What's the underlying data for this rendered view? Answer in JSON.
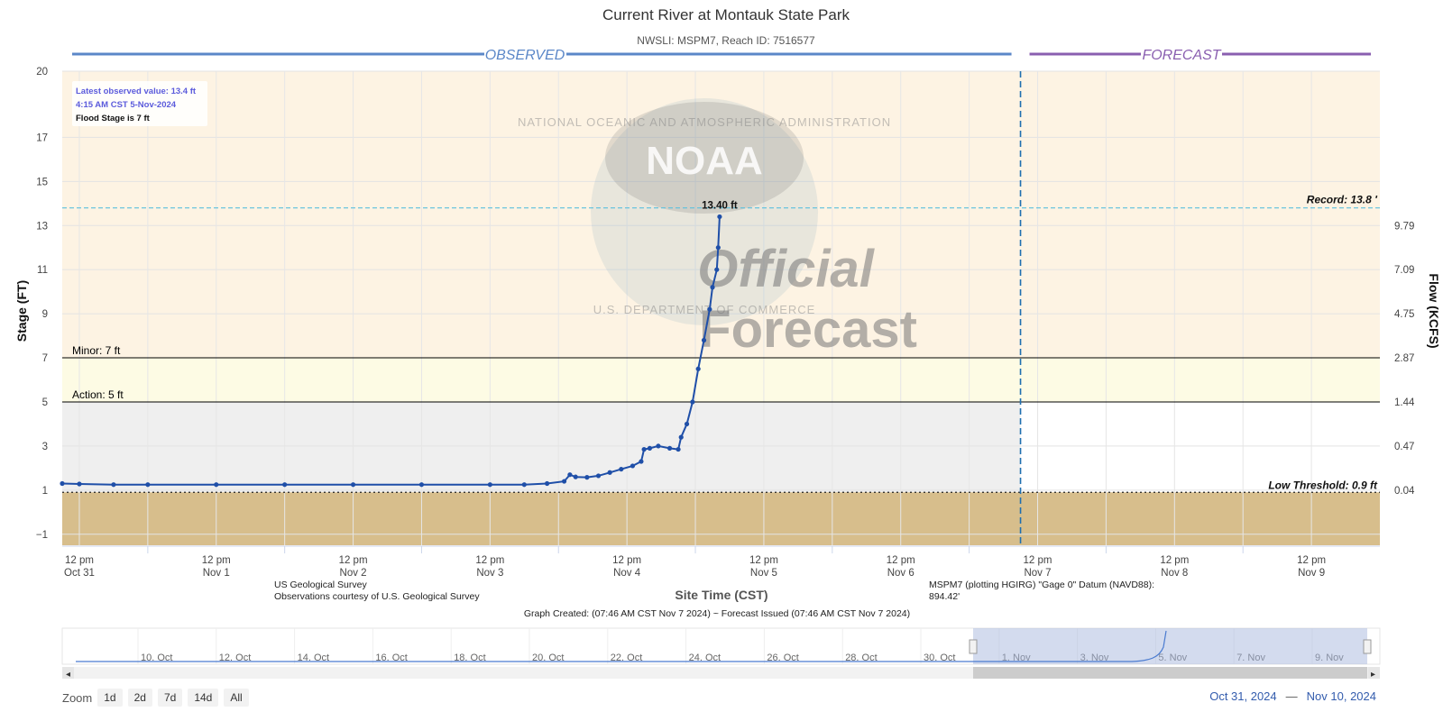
{
  "chart_data": {
    "type": "line",
    "title": "Current River at Montauk State Park",
    "subtitle": "NWSLI: MSPM7, Reach ID: 7516577",
    "ylabel": "Stage (FT)",
    "y2label": "Flow (KCFS)",
    "xlabel": "Site Time (CST)",
    "ylim": [
      -1.5,
      20
    ],
    "xlim": [
      "2024-10-31T09:00",
      "2024-11-10T00:00"
    ],
    "y_ticks": [
      20,
      17,
      15,
      13,
      11,
      9,
      7,
      5,
      3,
      1,
      -1
    ],
    "y2_ticks": [
      {
        "stage": 13,
        "label": "9.79"
      },
      {
        "stage": 11,
        "label": "7.09"
      },
      {
        "stage": 9,
        "label": "4.75"
      },
      {
        "stage": 7,
        "label": "2.87"
      },
      {
        "stage": 5,
        "label": "1.44"
      },
      {
        "stage": 3,
        "label": "0.47"
      },
      {
        "stage": 1,
        "label": "0.04"
      }
    ],
    "x_ticks": [
      {
        "t": "2024-10-31T12:00",
        "l1": "12 pm",
        "l2": "Oct 31"
      },
      {
        "t": "2024-11-01T12:00",
        "l1": "12 pm",
        "l2": "Nov 1"
      },
      {
        "t": "2024-11-02T12:00",
        "l1": "12 pm",
        "l2": "Nov 2"
      },
      {
        "t": "2024-11-03T12:00",
        "l1": "12 pm",
        "l2": "Nov 3"
      },
      {
        "t": "2024-11-04T12:00",
        "l1": "12 pm",
        "l2": "Nov 4"
      },
      {
        "t": "2024-11-05T12:00",
        "l1": "12 pm",
        "l2": "Nov 5"
      },
      {
        "t": "2024-11-06T12:00",
        "l1": "12 pm",
        "l2": "Nov 6"
      },
      {
        "t": "2024-11-07T12:00",
        "l1": "12 pm",
        "l2": "Nov 7"
      },
      {
        "t": "2024-11-08T12:00",
        "l1": "12 pm",
        "l2": "Nov 8"
      },
      {
        "t": "2024-11-09T12:00",
        "l1": "12 pm",
        "l2": "Nov 9"
      }
    ],
    "series": [
      {
        "name": "Observed",
        "color": "#1f4fa8",
        "points": [
          [
            "2024-10-31T09:00",
            1.3
          ],
          [
            "2024-10-31T12:00",
            1.28
          ],
          [
            "2024-10-31T18:00",
            1.25
          ],
          [
            "2024-11-01T00:00",
            1.25
          ],
          [
            "2024-11-01T12:00",
            1.25
          ],
          [
            "2024-11-02T00:00",
            1.25
          ],
          [
            "2024-11-02T12:00",
            1.25
          ],
          [
            "2024-11-03T00:00",
            1.25
          ],
          [
            "2024-11-03T12:00",
            1.25
          ],
          [
            "2024-11-03T18:00",
            1.25
          ],
          [
            "2024-11-03T22:00",
            1.3
          ],
          [
            "2024-11-04T01:00",
            1.4
          ],
          [
            "2024-11-04T02:00",
            1.7
          ],
          [
            "2024-11-04T03:00",
            1.6
          ],
          [
            "2024-11-04T05:00",
            1.58
          ],
          [
            "2024-11-04T07:00",
            1.65
          ],
          [
            "2024-11-04T09:00",
            1.8
          ],
          [
            "2024-11-04T11:00",
            1.95
          ],
          [
            "2024-11-04T13:00",
            2.1
          ],
          [
            "2024-11-04T14:30",
            2.3
          ],
          [
            "2024-11-04T15:00",
            2.85
          ],
          [
            "2024-11-04T16:00",
            2.9
          ],
          [
            "2024-11-04T17:30",
            3.0
          ],
          [
            "2024-11-04T19:30",
            2.9
          ],
          [
            "2024-11-04T21:00",
            2.85
          ],
          [
            "2024-11-04T21:30",
            3.4
          ],
          [
            "2024-11-04T22:30",
            4.0
          ],
          [
            "2024-11-04T23:30",
            5.0
          ],
          [
            "2024-11-05T00:30",
            6.5
          ],
          [
            "2024-11-05T01:30",
            7.8
          ],
          [
            "2024-11-05T02:30",
            9.2
          ],
          [
            "2024-11-05T03:00",
            10.2
          ],
          [
            "2024-11-05T03:45",
            11.0
          ],
          [
            "2024-11-05T04:00",
            12.0
          ],
          [
            "2024-11-05T04:15",
            13.4
          ]
        ]
      }
    ],
    "peak_label": "13.40 ft",
    "record": {
      "value": 13.8,
      "label": "Record: 13.8 '",
      "color": "#5bc0de"
    },
    "low_threshold": {
      "value": 0.9,
      "label": "Low Threshold: 0.9 ft"
    },
    "flood_categories": [
      {
        "name": "Minor: 7 ft",
        "value": 7,
        "color": "#fdf3e3"
      },
      {
        "name": "Action: 5 ft",
        "value": 5,
        "color": "#fdfbe4"
      }
    ],
    "band_colors": {
      "normal": "#efefef",
      "low": "#d7be8c",
      "minor": "#fdf3e3",
      "action": "#fdfbe4"
    },
    "forecast_start": "2024-11-07T09:00",
    "observed_label": "OBSERVED",
    "forecast_label": "FORECAST",
    "observed_color": "#5b87c8",
    "forecast_color": "#8a5fb0",
    "grid": true,
    "info_box": {
      "line1": "Latest observed value: 13.4 ft",
      "line2": "4:15 AM CST 5-Nov-2024",
      "line3": "Flood Stage is 7 ft"
    },
    "credits_left": [
      "US Geological Survey",
      "Observations courtesy of U.S. Geological Survey"
    ],
    "credits_right": [
      "MSPM7 (plotting HGIRG) \"Gage 0\" Datum (NAVD88):",
      "894.42'"
    ],
    "graph_created": "Graph Created: (07:46 AM CST Nov 7 2024) ~ Forecast Issued (07:46 AM CST Nov 7 2024)",
    "watermark": [
      "NOAA",
      "NATIONAL OCEANIC AND ATMOSPHERIC ADMINISTRATION",
      "U.S. DEPARTMENT OF COMMERCE",
      "Official",
      "Forecast"
    ]
  },
  "navigator": {
    "labels": [
      "10. Oct",
      "12. Oct",
      "14. Oct",
      "16. Oct",
      "18. Oct",
      "20. Oct",
      "22. Oct",
      "24. Oct",
      "26. Oct",
      "28. Oct",
      "30. Oct",
      "1. Nov",
      "3. Nov",
      "5. Nov",
      "7. Nov",
      "9. Nov"
    ],
    "selected_start": "2024-10-31",
    "selected_end": "2024-11-10"
  },
  "zoom": {
    "label": "Zoom",
    "buttons": [
      "1d",
      "2d",
      "7d",
      "14d",
      "All"
    ]
  },
  "range": {
    "from": "Oct 31, 2024",
    "separator": "—",
    "to": "Nov 10, 2024"
  }
}
